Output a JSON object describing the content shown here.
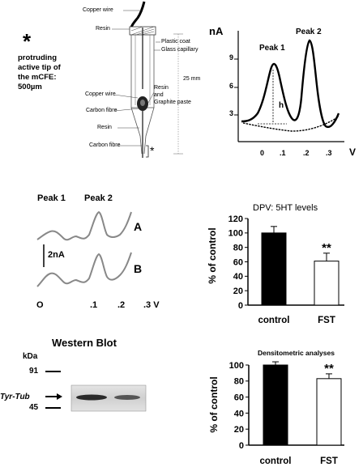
{
  "electrode": {
    "asterisk": "*",
    "note": [
      "protruding",
      "active tip of",
      "the mCFE:",
      "500µm"
    ],
    "labels": {
      "copper_wire_top": "Copper wire",
      "resin_top": "Resin",
      "plastic_coat": "Plastic coat",
      "glass_capillary": "Glass capillary",
      "length": "25 mm",
      "copper_wire_mid": "Copper wire",
      "carbon_fibre_mid": "Carbon fibre",
      "resin_paste_1": "Resin",
      "resin_paste_2": "and",
      "resin_paste_3": "Graphite paste",
      "resin_bottom": "Resin",
      "carbon_fibre_bottom": "Carbon fibre",
      "tip_asterisk": "*"
    }
  },
  "voltammogram": {
    "y_unit": "nA",
    "x_unit": "V",
    "y_ticks": [
      "9",
      "6",
      "3"
    ],
    "x_ticks": [
      "0",
      ".1",
      ".2",
      ".3"
    ],
    "peak1": "Peak 1",
    "peak2": "Peak 2",
    "h_label": "h"
  },
  "traces": {
    "peak1": "Peak 1",
    "peak2": "Peak 2",
    "trace_a": "A",
    "trace_b": "B",
    "scale": "2nA",
    "x_ticks": [
      "O",
      ".1",
      ".2",
      ".3 V"
    ]
  },
  "western": {
    "title": "Western Blot",
    "kda": "kDa",
    "marker_top": "91",
    "marker_bottom": "45",
    "protein": "Tyr-Tub"
  },
  "chart_data": [
    {
      "type": "bar",
      "title": "DPV: 5HT levels",
      "ylabel": "% of control",
      "categories": [
        "control",
        "FST"
      ],
      "values": [
        100,
        61
      ],
      "errors": [
        9,
        11
      ],
      "ylim": [
        0,
        120
      ],
      "yticks": [
        "0",
        "20",
        "40",
        "60",
        "80",
        "100",
        "120"
      ],
      "significance": [
        "",
        "**"
      ],
      "colors": [
        "#000000",
        "#ffffff"
      ]
    },
    {
      "type": "bar",
      "title": "Densitometric analyses",
      "ylabel": "% of control",
      "categories": [
        "control",
        "FST"
      ],
      "values": [
        100,
        83
      ],
      "errors": [
        4,
        6
      ],
      "ylim": [
        0,
        100
      ],
      "yticks": [
        "0",
        "20",
        "40",
        "60",
        "80",
        "100"
      ],
      "significance": [
        "",
        "**"
      ],
      "colors": [
        "#000000",
        "#ffffff"
      ]
    }
  ]
}
